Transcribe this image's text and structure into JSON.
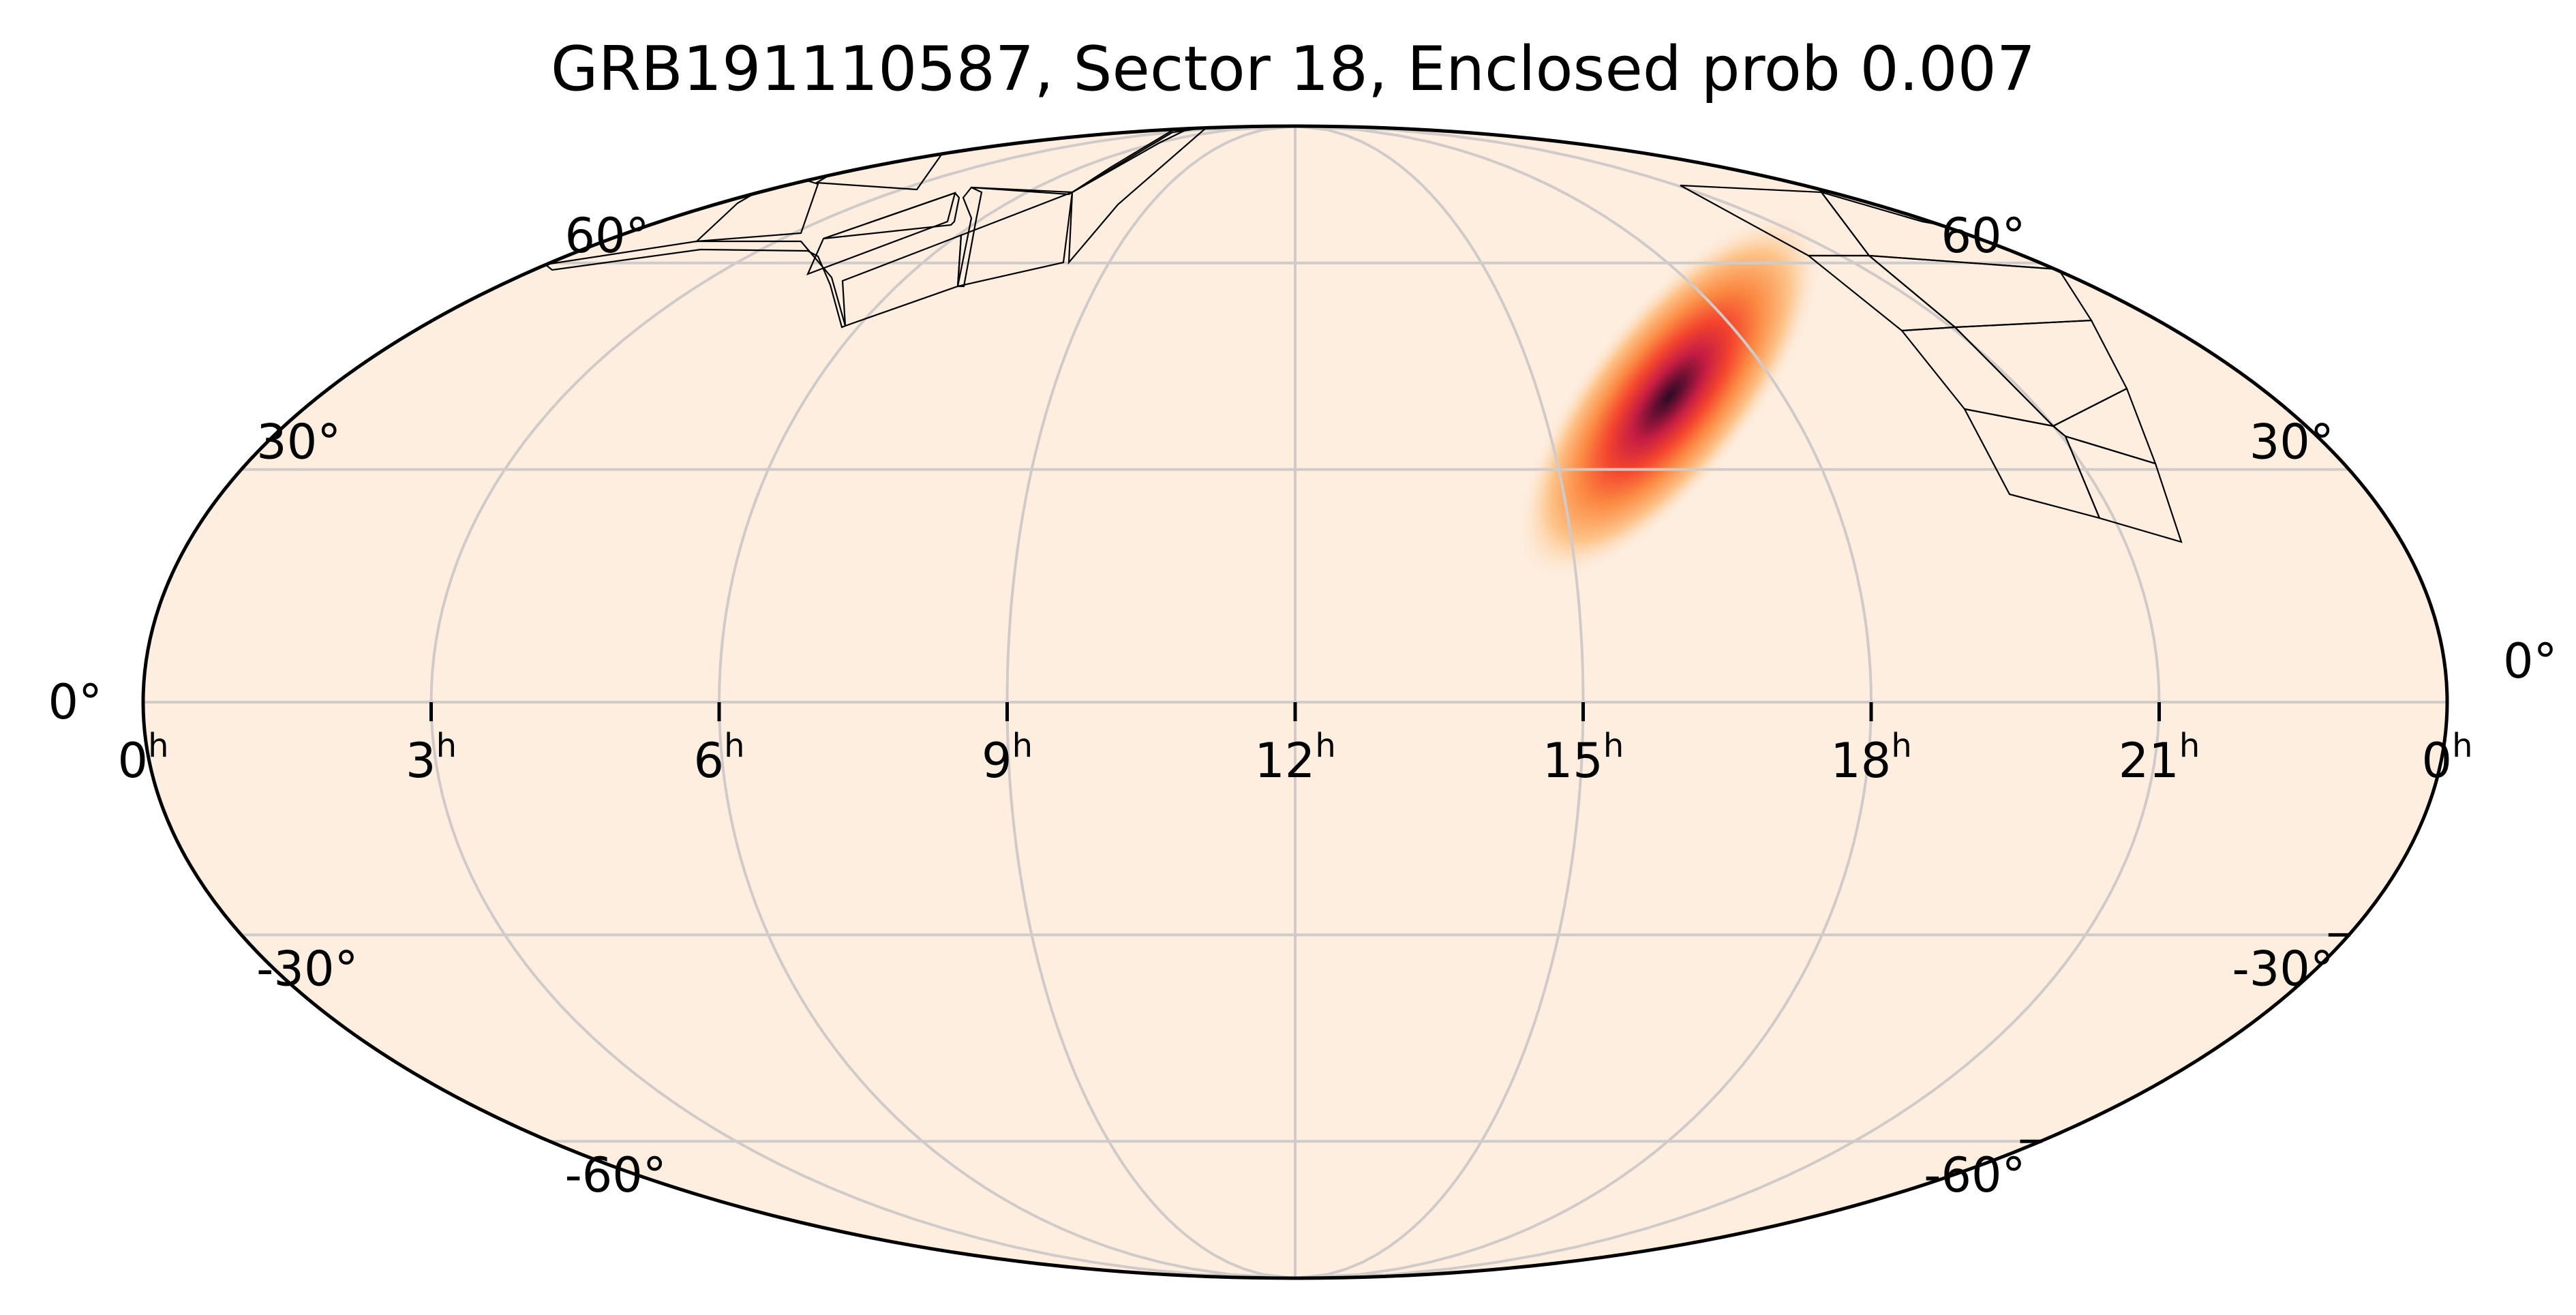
{
  "chart_data": {
    "type": "heatmap",
    "title": "GRB191110587, Sector 18, Enclosed prob 0.007",
    "projection": "mollweide",
    "x_axis": {
      "quantity": "right ascension",
      "reversed": true,
      "tick_values_hours": [
        0,
        21,
        18,
        15,
        12,
        9,
        6,
        3,
        0
      ],
      "tick_labels": [
        "0",
        "21",
        "18",
        "15",
        "12",
        "9",
        "6",
        "3",
        "0"
      ],
      "tick_superscript": "h"
    },
    "y_axis": {
      "quantity": "declination",
      "tick_values_deg": [
        60,
        30,
        0,
        -30,
        -60
      ],
      "tick_labels_left": [
        "60°",
        "30°",
        "0°",
        "-30°",
        "-60°"
      ],
      "tick_labels_right": [
        "60°",
        "30°",
        "0°",
        "-30°",
        "-60°"
      ]
    },
    "grid": true,
    "colormap": "light cream (low) to red to dark purple (high)",
    "background_color": "#fdeee0",
    "probability_peak": {
      "ra_hours": 16.6,
      "dec_deg": 40
    },
    "sector": 18,
    "enclosed_probability": 0.007,
    "footprint_count": 16
  }
}
